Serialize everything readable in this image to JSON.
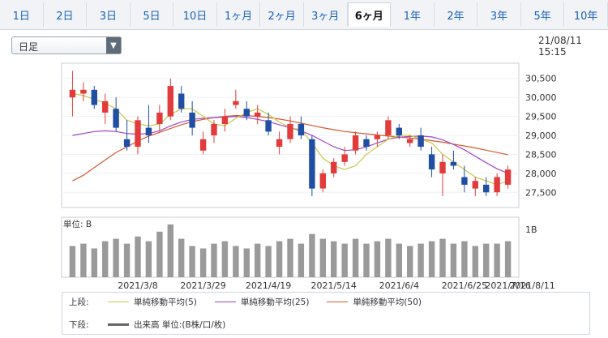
{
  "tabs": [
    {
      "label": "1日"
    },
    {
      "label": "2日"
    },
    {
      "label": "3日"
    },
    {
      "label": "5日"
    },
    {
      "label": "10日"
    },
    {
      "label": "1ヶ月"
    },
    {
      "label": "2ヶ月"
    },
    {
      "label": "3ヶ月"
    },
    {
      "label": "6ヶ月",
      "active": true
    },
    {
      "label": "1年"
    },
    {
      "label": "2年"
    },
    {
      "label": "3年"
    },
    {
      "label": "5年"
    },
    {
      "label": "10年"
    }
  ],
  "controls": {
    "period_select": {
      "value": "日足"
    },
    "timestamp": "21/08/11 15:15"
  },
  "chart_data": {
    "type": "table",
    "price": {
      "ylim": [
        27100,
        30900
      ],
      "ticks": [
        {
          "value": 30500,
          "label": "30,500"
        },
        {
          "value": 30000,
          "label": "30,000"
        },
        {
          "value": 29500,
          "label": "29,500"
        },
        {
          "value": 29000,
          "label": "29,000"
        },
        {
          "value": 28500,
          "label": "28,500"
        },
        {
          "value": 28000,
          "label": "28,000"
        },
        {
          "value": 27500,
          "label": "27,500"
        }
      ],
      "candles": [
        {
          "o": 30000,
          "h": 30700,
          "l": 29500,
          "c": 30200,
          "up": true
        },
        {
          "o": 30100,
          "h": 30400,
          "l": 29900,
          "c": 30200,
          "up": true
        },
        {
          "o": 30200,
          "h": 30300,
          "l": 29700,
          "c": 29800,
          "up": false
        },
        {
          "o": 29600,
          "h": 30100,
          "l": 29300,
          "c": 29900,
          "up": true
        },
        {
          "o": 29700,
          "h": 30000,
          "l": 29100,
          "c": 29200,
          "up": false
        },
        {
          "o": 28900,
          "h": 29400,
          "l": 28600,
          "c": 28700,
          "up": false
        },
        {
          "o": 28700,
          "h": 29500,
          "l": 28500,
          "c": 29400,
          "up": true
        },
        {
          "o": 29200,
          "h": 29800,
          "l": 28800,
          "c": 29000,
          "up": false
        },
        {
          "o": 29300,
          "h": 29800,
          "l": 29100,
          "c": 29600,
          "up": true
        },
        {
          "o": 29500,
          "h": 30500,
          "l": 29400,
          "c": 30300,
          "up": true
        },
        {
          "o": 30100,
          "h": 30300,
          "l": 29600,
          "c": 29700,
          "up": false
        },
        {
          "o": 29600,
          "h": 29900,
          "l": 29000,
          "c": 29200,
          "up": false
        },
        {
          "o": 28600,
          "h": 29100,
          "l": 28500,
          "c": 28900,
          "up": true
        },
        {
          "o": 29000,
          "h": 29400,
          "l": 28800,
          "c": 29300,
          "up": true
        },
        {
          "o": 29300,
          "h": 29700,
          "l": 29100,
          "c": 29500,
          "up": true
        },
        {
          "o": 29800,
          "h": 30200,
          "l": 29700,
          "c": 29900,
          "up": true
        },
        {
          "o": 29700,
          "h": 29900,
          "l": 29400,
          "c": 29500,
          "up": false
        },
        {
          "o": 29500,
          "h": 29800,
          "l": 29300,
          "c": 29600,
          "up": true
        },
        {
          "o": 29400,
          "h": 29600,
          "l": 29000,
          "c": 29100,
          "up": false
        },
        {
          "o": 28700,
          "h": 29100,
          "l": 28500,
          "c": 28900,
          "up": true
        },
        {
          "o": 28900,
          "h": 29500,
          "l": 28800,
          "c": 29300,
          "up": true
        },
        {
          "o": 29300,
          "h": 29500,
          "l": 28900,
          "c": 29000,
          "up": false
        },
        {
          "o": 28900,
          "h": 29000,
          "l": 27400,
          "c": 27600,
          "up": false
        },
        {
          "o": 27600,
          "h": 28100,
          "l": 27500,
          "c": 28000,
          "up": true
        },
        {
          "o": 28000,
          "h": 28400,
          "l": 27900,
          "c": 28300,
          "up": true
        },
        {
          "o": 28300,
          "h": 28700,
          "l": 28200,
          "c": 28500,
          "up": true
        },
        {
          "o": 28600,
          "h": 29100,
          "l": 28500,
          "c": 29000,
          "up": true
        },
        {
          "o": 28900,
          "h": 29000,
          "l": 28600,
          "c": 28700,
          "up": false
        },
        {
          "o": 28900,
          "h": 29100,
          "l": 28700,
          "c": 29000,
          "up": true
        },
        {
          "o": 29000,
          "h": 29500,
          "l": 28900,
          "c": 29400,
          "up": true
        },
        {
          "o": 29200,
          "h": 29300,
          "l": 28900,
          "c": 29000,
          "up": false
        },
        {
          "o": 28800,
          "h": 29000,
          "l": 28700,
          "c": 28900,
          "up": true
        },
        {
          "o": 29000,
          "h": 29200,
          "l": 28600,
          "c": 28700,
          "up": false
        },
        {
          "o": 28500,
          "h": 28700,
          "l": 27900,
          "c": 28100,
          "up": false
        },
        {
          "o": 28000,
          "h": 28500,
          "l": 27400,
          "c": 28300,
          "up": true
        },
        {
          "o": 28300,
          "h": 28600,
          "l": 28100,
          "c": 28200,
          "up": false
        },
        {
          "o": 27900,
          "h": 28200,
          "l": 27500,
          "c": 27700,
          "up": false
        },
        {
          "o": 27600,
          "h": 27900,
          "l": 27400,
          "c": 27800,
          "up": true
        },
        {
          "o": 27700,
          "h": 27900,
          "l": 27400,
          "c": 27500,
          "up": false
        },
        {
          "o": 27500,
          "h": 28000,
          "l": 27400,
          "c": 27900,
          "up": true
        },
        {
          "o": 27700,
          "h": 28200,
          "l": 27600,
          "c": 28100,
          "up": true
        }
      ],
      "sma5": [
        30100,
        30050,
        29950,
        29850,
        29700,
        29400,
        29300,
        29250,
        29300,
        29550,
        29700,
        29700,
        29500,
        29300,
        29250,
        29450,
        29600,
        29700,
        29550,
        29350,
        29200,
        29150,
        28800,
        28400,
        28200,
        28100,
        28200,
        28500,
        28700,
        28900,
        29000,
        29000,
        28900,
        28800,
        28500,
        28300,
        28100,
        27900,
        27800,
        27700,
        27800
      ],
      "sma25": [
        29000,
        29050,
        29100,
        29120,
        29100,
        29050,
        29030,
        29050,
        29120,
        29250,
        29350,
        29420,
        29450,
        29470,
        29480,
        29500,
        29470,
        29420,
        29360,
        29280,
        29200,
        29120,
        29000,
        28850,
        28700,
        28600,
        28620,
        28700,
        28800,
        28900,
        28950,
        28970,
        28980,
        28960,
        28880,
        28760,
        28620,
        28450,
        28280,
        28120,
        28000
      ],
      "sma50": [
        27800,
        27950,
        28150,
        28350,
        28550,
        28700,
        28850,
        28980,
        29080,
        29180,
        29280,
        29360,
        29420,
        29470,
        29500,
        29520,
        29520,
        29500,
        29470,
        29430,
        29380,
        29320,
        29260,
        29200,
        29150,
        29100,
        29070,
        29040,
        29010,
        28980,
        28960,
        28930,
        28900,
        28860,
        28820,
        28770,
        28720,
        28670,
        28610,
        28550,
        28490
      ]
    },
    "volume": {
      "unit_label": "単位: B",
      "tick_label": "1B",
      "values": [
        0.65,
        0.7,
        0.6,
        0.75,
        0.8,
        0.7,
        0.85,
        0.75,
        0.95,
        1.1,
        0.8,
        0.65,
        0.6,
        0.7,
        0.75,
        0.65,
        0.6,
        0.7,
        0.65,
        0.75,
        0.8,
        0.7,
        0.9,
        0.8,
        0.75,
        0.7,
        0.8,
        0.7,
        0.75,
        0.8,
        0.7,
        0.65,
        0.7,
        0.75,
        0.8,
        0.7,
        0.75,
        0.65,
        0.7,
        0.7,
        0.75
      ]
    },
    "x_labels": [
      {
        "at": 6,
        "label": "2021/3/8"
      },
      {
        "at": 12,
        "label": "2021/3/29"
      },
      {
        "at": 18,
        "label": "2021/4/19"
      },
      {
        "at": 24,
        "label": "2021/5/14"
      },
      {
        "at": 30,
        "label": "2021/6/4"
      },
      {
        "at": 36,
        "label": "2021/6/25"
      },
      {
        "at": 40,
        "label": "2021/7/16"
      },
      {
        "at": 40,
        "label": "2021/8/11"
      }
    ]
  },
  "legend": {
    "upper_head": "上段:",
    "lower_head": "下段:",
    "upper_items": [
      "単純移動平均(5)",
      "単純移動平均(25)",
      "単純移動平均(50)"
    ],
    "lower_item": "出来高 単位:(B株/口/枚)",
    "colors": {
      "sma5": "#c6c94a",
      "sma25": "#a145c6",
      "sma50": "#d25a2b",
      "volume": "#666666"
    }
  }
}
